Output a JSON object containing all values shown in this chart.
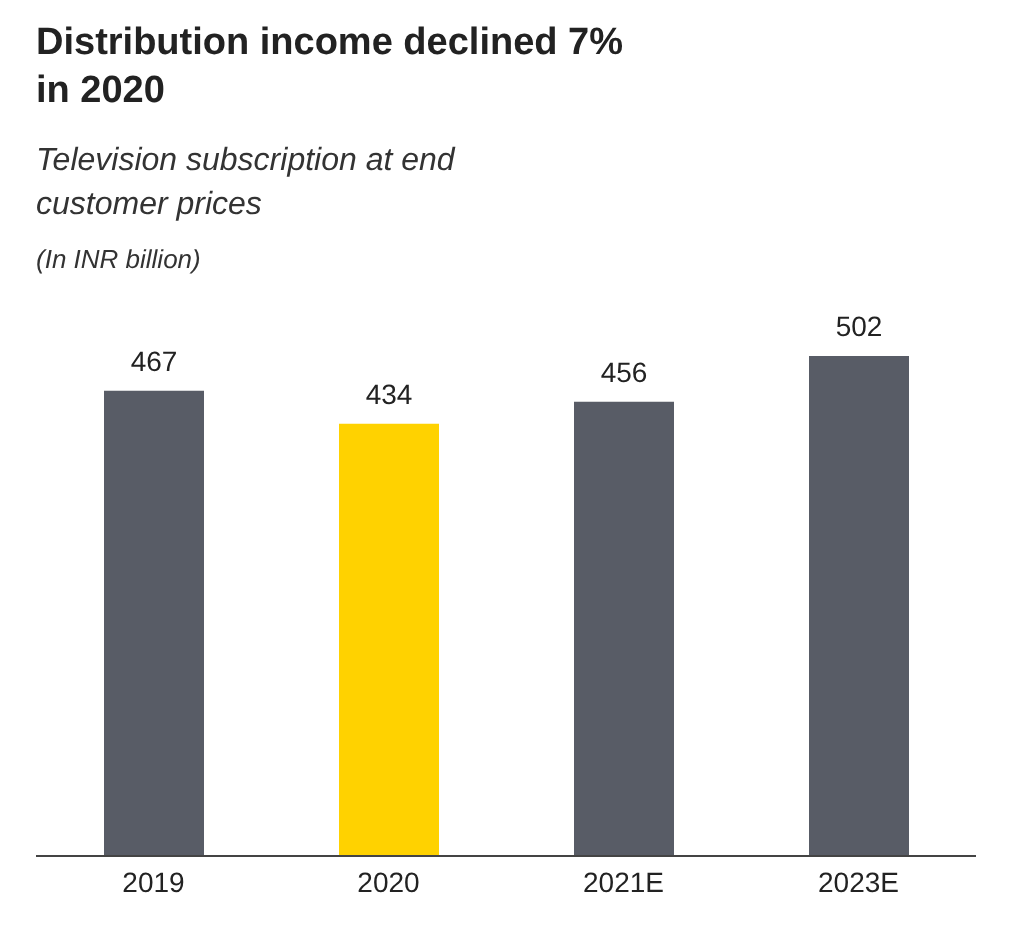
{
  "chart_data": {
    "type": "bar",
    "title": "Distribution income declined 7% in 2020",
    "subtitle": "Television subscription at end customer prices",
    "annotations": [
      "(In INR billion)"
    ],
    "categories": [
      "2019",
      "2020",
      "2021E",
      "2023E"
    ],
    "values": [
      467,
      434,
      456,
      502
    ],
    "colors": [
      "#585c66",
      "#ffd200",
      "#585c66",
      "#585c66"
    ],
    "tick_labels": "x",
    "data_labels": true
  }
}
